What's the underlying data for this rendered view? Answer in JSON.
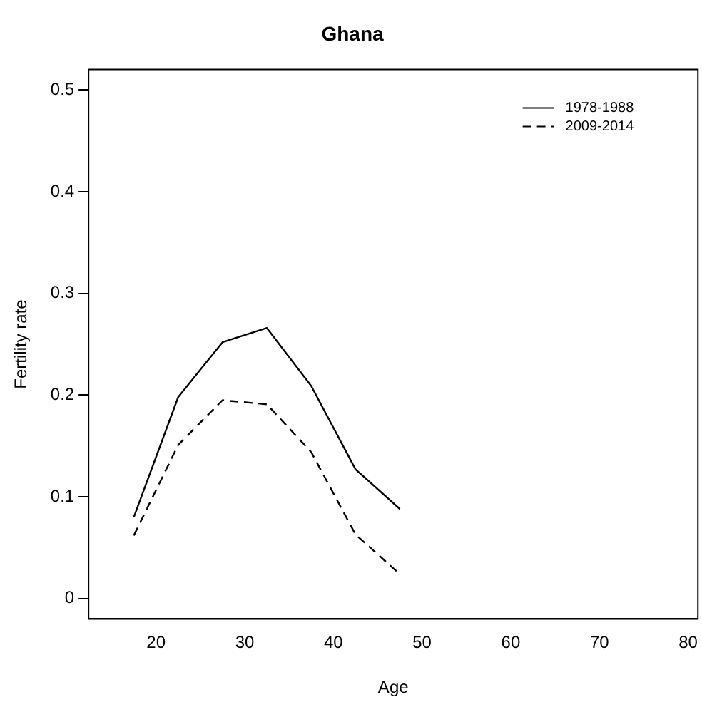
{
  "chart_data": {
    "type": "line",
    "title": "Ghana",
    "xlabel": "Age",
    "ylabel": "Fertility rate",
    "x": [
      17.5,
      22.5,
      27.5,
      32.5,
      37.5,
      42.5,
      47.5
    ],
    "series": [
      {
        "name": "1978-1988",
        "color": "#000000",
        "line_style": "solid",
        "values": [
          0.08,
          0.198,
          0.252,
          0.266,
          0.209,
          0.127,
          0.088
        ]
      },
      {
        "name": "2009-2014",
        "color": "#000000",
        "line_style": "dashed",
        "values": [
          0.062,
          0.151,
          0.195,
          0.191,
          0.144,
          0.063,
          0.024
        ]
      }
    ],
    "xlim": [
      12.4,
      81.1
    ],
    "xticks": [
      20,
      30,
      40,
      50,
      60,
      70,
      80
    ],
    "ylim": [
      -0.02,
      0.52
    ],
    "yticks": [
      0,
      0.1,
      0.2,
      0.3,
      0.4,
      0.5
    ],
    "grid": false,
    "legend": "top right",
    "marker": "none"
  }
}
